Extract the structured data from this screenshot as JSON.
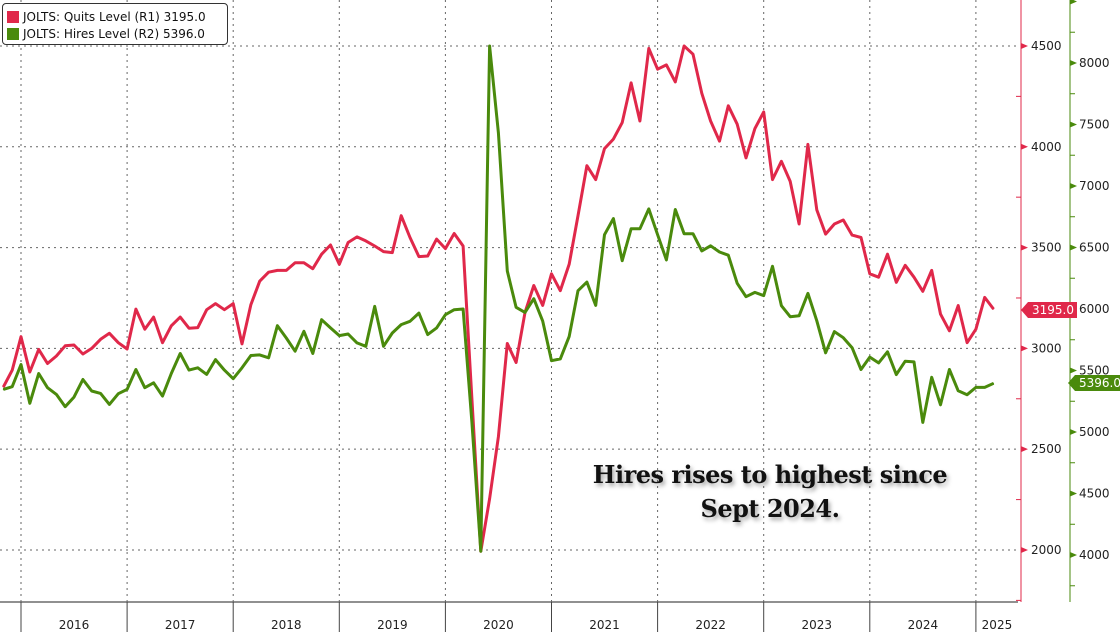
{
  "colors": {
    "quits": "#e0284a",
    "hires": "#4a8a0c",
    "grid": "#555555",
    "text": "#222222"
  },
  "legend": [
    {
      "label": "JOLTS: Quits Level (R1) 3195.0",
      "color": "#e0284a"
    },
    {
      "label": "JOLTS: Hires Level (R2) 5396.0",
      "color": "#4a8a0c"
    }
  ],
  "annotation": {
    "line1": "Hires rises to highest since",
    "line2": "Sept 2024."
  },
  "last_value_tags": {
    "quits": "3195.0",
    "hires": "5396.0"
  },
  "chart_data": {
    "type": "line",
    "title": "",
    "start_month": "2015-10",
    "end_month": "2025-02",
    "x_ticks": [
      "2016",
      "2017",
      "2018",
      "2019",
      "2020",
      "2021",
      "2022",
      "2023",
      "2024",
      "2025"
    ],
    "grid": true,
    "legend_position": "top-left",
    "axes": {
      "R1": {
        "series": "quits",
        "range": [
          1742,
          4728
        ],
        "ticks": [
          "4500",
          "4000",
          "3500",
          "3000",
          "2500",
          "2000"
        ],
        "tick_values": [
          4500,
          4000,
          3500,
          3000,
          2500,
          2000
        ]
      },
      "R2": {
        "series": "hires",
        "range": [
          3618,
          8512
        ],
        "ticks": [
          "8000",
          "7500",
          "7000",
          "6500",
          "6000",
          "5500",
          "5000",
          "4500",
          "4000"
        ],
        "tick_values": [
          8000,
          7500,
          7000,
          6500,
          6000,
          5500,
          5000,
          4500,
          4000
        ]
      }
    },
    "series": [
      {
        "name": "JOLTS: Quits Level (R1)",
        "key": "quits",
        "axis": "R1",
        "values": [
          2808,
          2892,
          3058,
          2883,
          2995,
          2925,
          2962,
          3013,
          3017,
          2972,
          3000,
          3045,
          3075,
          3028,
          2997,
          3195,
          3095,
          3155,
          3028,
          3112,
          3155,
          3100,
          3103,
          3192,
          3222,
          3192,
          3222,
          3022,
          3217,
          3333,
          3378,
          3387,
          3387,
          3425,
          3425,
          3395,
          3467,
          3513,
          3417,
          3525,
          3553,
          3533,
          3508,
          3480,
          3475,
          3658,
          3550,
          3455,
          3458,
          3542,
          3495,
          3570,
          3508,
          2750,
          1994,
          2254,
          2562,
          3024,
          2930,
          3178,
          3312,
          3213,
          3370,
          3286,
          3418,
          3658,
          3906,
          3837,
          3991,
          4038,
          4120,
          4317,
          4128,
          4488,
          4385,
          4406,
          4322,
          4500,
          4459,
          4265,
          4128,
          4028,
          4203,
          4112,
          3945,
          4090,
          4173,
          3837,
          3928,
          3828,
          3617,
          4012,
          3687,
          3567,
          3617,
          3637,
          3562,
          3550,
          3370,
          3353,
          3467,
          3328,
          3412,
          3353,
          3283,
          3387,
          3170,
          3087,
          3212,
          3028,
          3095,
          3253,
          3195
        ]
      },
      {
        "name": "JOLTS: Hires Level (R2)",
        "key": "hires",
        "axis": "R2",
        "values": [
          5346,
          5368,
          5549,
          5233,
          5476,
          5360,
          5306,
          5206,
          5284,
          5427,
          5333,
          5314,
          5224,
          5311,
          5346,
          5508,
          5360,
          5400,
          5292,
          5476,
          5638,
          5503,
          5522,
          5468,
          5589,
          5503,
          5433,
          5522,
          5622,
          5627,
          5603,
          5864,
          5764,
          5657,
          5819,
          5638,
          5913,
          5846,
          5784,
          5797,
          5724,
          5697,
          6021,
          5697,
          5805,
          5873,
          5900,
          5967,
          5792,
          5846,
          5954,
          5994,
          6000,
          5080,
          4031,
          8138,
          7432,
          6309,
          6014,
          5972,
          6084,
          5902,
          5580,
          5594,
          5777,
          6149,
          6219,
          6029,
          6604,
          6735,
          6393,
          6652,
          6652,
          6814,
          6604,
          6399,
          6809,
          6612,
          6612,
          6472,
          6514,
          6463,
          6437,
          6209,
          6100,
          6135,
          6109,
          6347,
          6027,
          5937,
          5945,
          6127,
          5904,
          5644,
          5816,
          5767,
          5685,
          5508,
          5609,
          5562,
          5652,
          5467,
          5576,
          5570,
          5078,
          5445,
          5221,
          5508,
          5335,
          5303,
          5363,
          5363,
          5396
        ]
      }
    ]
  }
}
